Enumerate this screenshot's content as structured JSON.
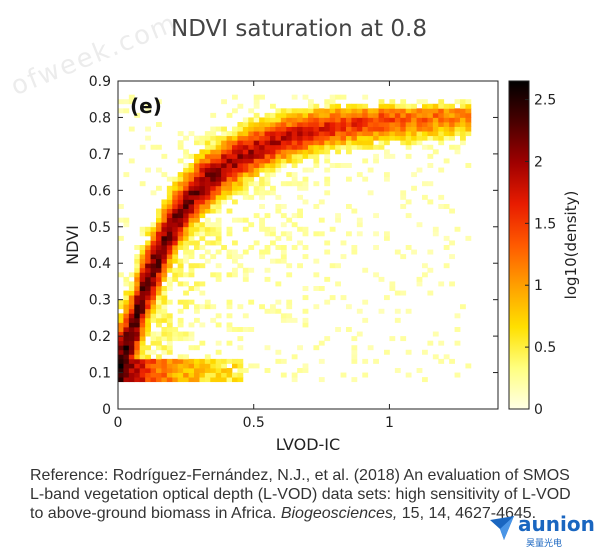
{
  "title": "NDVI saturation at 0.8",
  "watermark": "ofweek.com",
  "reference": {
    "prefix": "Reference: Rodríguez-Fernández, N.J., et al. (2018) An evaluation of SMOS L-band vegetation optical depth (L-VOD) data sets: high sensitivity of L-VOD to above-ground biomass in Africa. ",
    "journal": "Biogeosciences,",
    "suffix": " 15, 14, 4627-4645."
  },
  "logo": {
    "name": "aunion",
    "sub": "昊量光电"
  },
  "chart_data": {
    "type": "heatmap",
    "panel_label": "(e)",
    "xlabel": "LVOD-IC",
    "ylabel": "NDVI",
    "xlim": [
      0,
      1.4
    ],
    "ylim": [
      0,
      0.9
    ],
    "x_ticks": [
      0,
      0.5,
      1
    ],
    "x_tick_labels": [
      "0",
      "0.5",
      "1"
    ],
    "y_ticks": [
      0,
      0.1,
      0.2,
      0.3,
      0.4,
      0.5,
      0.6,
      0.7,
      0.8,
      0.9
    ],
    "y_tick_labels": [
      "0",
      "0.1",
      "0.2",
      "0.3",
      "0.4",
      "0.5",
      "0.6",
      "0.7",
      "0.8",
      "0.9"
    ],
    "colorbar": {
      "label": "log10(density)",
      "range": [
        0,
        2.65
      ],
      "ticks": [
        0,
        0.5,
        1,
        1.5,
        2,
        2.5
      ],
      "tick_labels": [
        "0",
        "0.5",
        "1",
        "1.5",
        "2",
        "2.5"
      ],
      "colormap": [
        "#ffffe6",
        "#ffff80",
        "#ffe000",
        "#ffa000",
        "#ff5a00",
        "#e81c00",
        "#a00000",
        "#4a0000",
        "#000000"
      ]
    },
    "density_ridge": {
      "description_points_x": [
        0.0,
        0.05,
        0.1,
        0.15,
        0.2,
        0.25,
        0.3,
        0.4,
        0.5,
        0.6,
        0.7,
        0.8,
        0.9,
        1.0,
        1.1,
        1.2,
        1.25
      ],
      "description_points_y": [
        0.1,
        0.2,
        0.33,
        0.42,
        0.5,
        0.56,
        0.61,
        0.67,
        0.71,
        0.74,
        0.76,
        0.775,
        0.785,
        0.79,
        0.795,
        0.8,
        0.8
      ]
    },
    "grid": false,
    "legend": "none"
  }
}
